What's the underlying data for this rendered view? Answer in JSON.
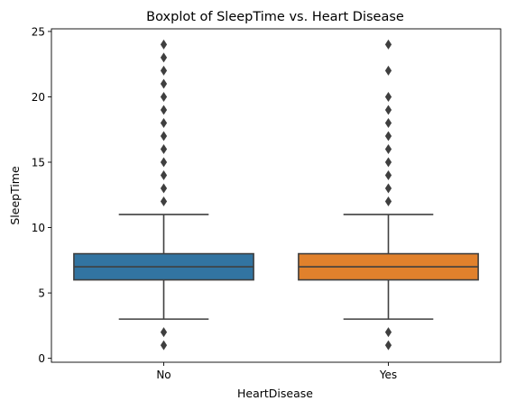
{
  "chart_data": {
    "type": "boxplot",
    "title": "Boxplot of SleepTime vs. Heart Disease",
    "xlabel": "HeartDisease",
    "ylabel": "SleepTime",
    "ylim": [
      -0.3,
      25.2
    ],
    "yticks": [
      0,
      5,
      10,
      15,
      20,
      25
    ],
    "grid": false,
    "categories": [
      "No",
      "Yes"
    ],
    "series": [
      {
        "category": "No",
        "color": "#3274a1",
        "whisker_low": 3,
        "q1": 6,
        "median": 7,
        "q3": 8,
        "whisker_high": 11,
        "outliers": [
          1,
          2,
          12,
          13,
          14,
          15,
          16,
          17,
          18,
          19,
          20,
          21,
          22,
          23,
          24
        ]
      },
      {
        "category": "Yes",
        "color": "#e1812c",
        "whisker_low": 3,
        "q1": 6,
        "median": 7,
        "q3": 8,
        "whisker_high": 11,
        "outliers": [
          1,
          2,
          12,
          13,
          14,
          15,
          16,
          17,
          18,
          19,
          20,
          22,
          24
        ]
      }
    ]
  }
}
